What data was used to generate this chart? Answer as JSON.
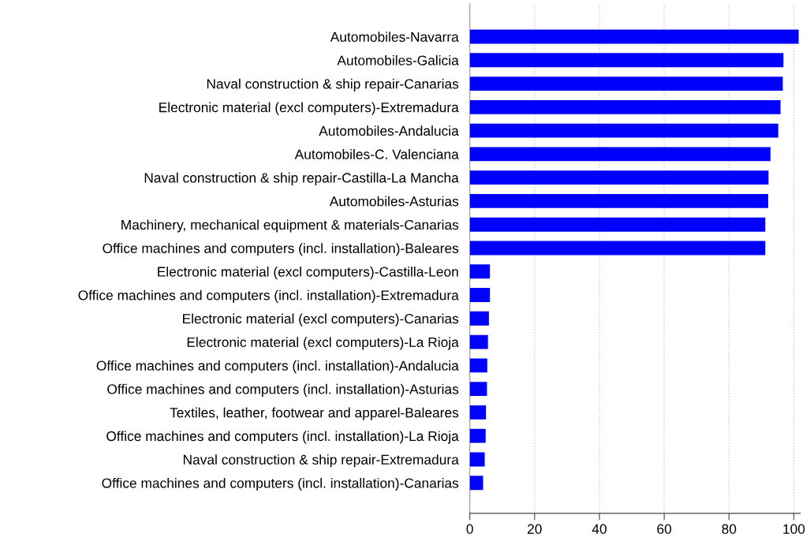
{
  "chart_data": {
    "type": "bar",
    "orientation": "horizontal",
    "categories": [
      "Automobiles-Navarra",
      "Automobiles-Galicia",
      "Naval construction & ship repair-Canarias",
      "Electronic material (excl computers)-Extremadura",
      "Automobiles-Andalucia",
      "Automobiles-C. Valenciana",
      "Naval construction & ship repair-Castilla-La Mancha",
      "Automobiles-Asturias",
      "Machinery, mechanical equipment & materials-Canarias",
      "Office machines and computers (incl. installation)-Baleares",
      "Electronic material (excl computers)-Castilla-Leon",
      "Office machines and computers (incl. installation)-Extremadura",
      "Electronic material (excl computers)-Canarias",
      "Electronic material (excl computers)-La Rioja",
      "Office machines and computers (incl. installation)-Andalucia",
      "Office machines and computers (incl. installation)-Asturias",
      "Textiles, leather, footwear and apparel-Baleares",
      "Office machines and computers (incl. installation)-La Rioja",
      "Naval construction & ship repair-Extremadura",
      "Office machines and computers (incl. installation)-Canarias"
    ],
    "values": [
      101.5,
      96.8,
      96.6,
      95.9,
      95.2,
      92.8,
      92.2,
      92.1,
      91.2,
      91.2,
      6.2,
      6.2,
      5.9,
      5.6,
      5.4,
      5.3,
      5.0,
      4.9,
      4.6,
      4.1
    ],
    "color": "#0000ff",
    "xlim": [
      0,
      102
    ],
    "xticks": [
      0,
      20,
      40,
      60,
      80,
      100
    ],
    "grid": "x"
  }
}
